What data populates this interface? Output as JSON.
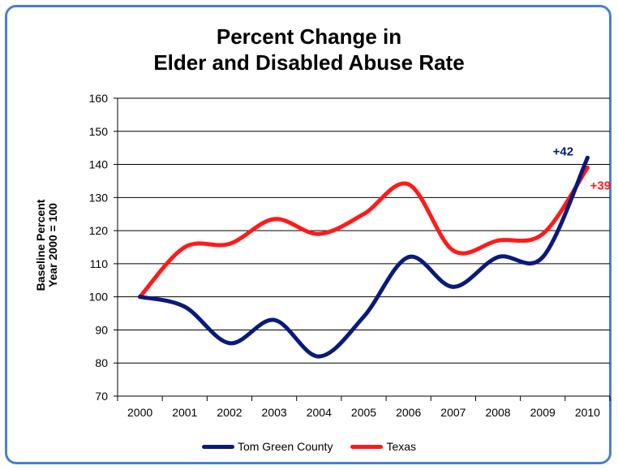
{
  "chart_data": {
    "type": "line",
    "title_line1": "Percent Change in",
    "title_line2": "Elder and Disabled Abuse Rate",
    "ylabel_line1": "Baseline Percent",
    "ylabel_line2": "Year 2000 = 100",
    "xlabel": "",
    "categories": [
      "2000",
      "2001",
      "2002",
      "2003",
      "2004",
      "2005",
      "2006",
      "2007",
      "2008",
      "2009",
      "2010"
    ],
    "ylim": [
      70,
      160
    ],
    "yticks": [
      70,
      80,
      90,
      100,
      110,
      120,
      130,
      140,
      150,
      160
    ],
    "grid": true,
    "legend_position": "bottom",
    "series": [
      {
        "name": "Tom Green County",
        "color": "#0a1a7a",
        "values": [
          100,
          97,
          86,
          93,
          82,
          94,
          112,
          103,
          112,
          112,
          142
        ],
        "end_label": "+42"
      },
      {
        "name": "Texas",
        "color": "#ff1a1a",
        "values": [
          100,
          115,
          116,
          123.5,
          119,
          125,
          134,
          114,
          117,
          119,
          139
        ],
        "end_label": "+39"
      }
    ]
  }
}
